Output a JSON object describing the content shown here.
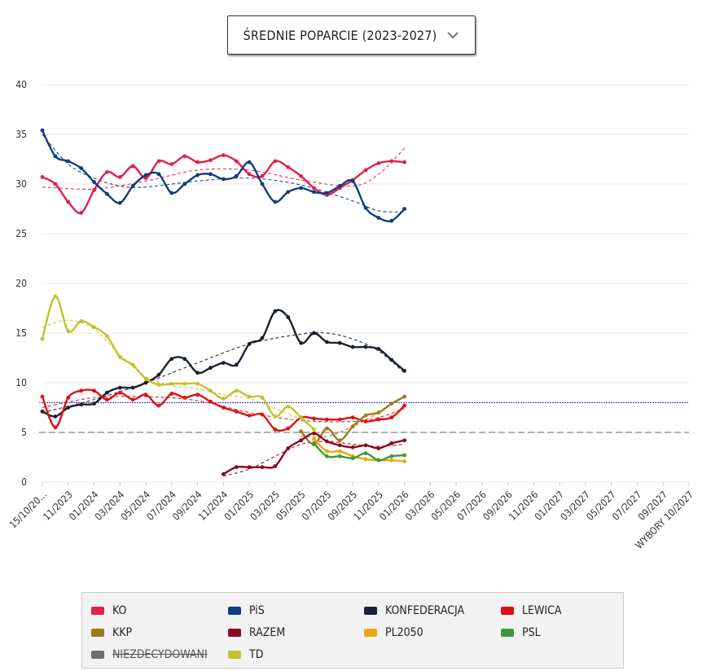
{
  "dropdown": {
    "label": "ŚREDNIE POPARCIE (2023-2027)"
  },
  "chart_data": {
    "type": "line",
    "ylim": [
      0,
      40
    ],
    "yticks": [
      0,
      5,
      10,
      15,
      20,
      25,
      30,
      35,
      40
    ],
    "x_ticks": [
      "15/10/20...",
      "11/2023",
      "01/2024",
      "03/2024",
      "05/2024",
      "07/2024",
      "09/2024",
      "11/2024",
      "01/2025",
      "03/2025",
      "05/2025",
      "07/2025",
      "09/2025",
      "11/2025",
      "01/2026",
      "03/2026",
      "05/2026",
      "07/2026",
      "09/2026",
      "11/2026",
      "01/2027",
      "03/2027",
      "05/2027",
      "07/2027",
      "09/2027",
      "WYBORY 10/2027"
    ],
    "reference_lines": [
      {
        "value": 8,
        "color": "#2222ee",
        "style": "dotted"
      },
      {
        "value": 5,
        "color": "#999999",
        "style": "dashed"
      }
    ],
    "series": [
      {
        "name": "KO",
        "color": "#e0204e",
        "points": [
          [
            0,
            30.7
          ],
          [
            0.5,
            30
          ],
          [
            1,
            28.2
          ],
          [
            1.5,
            27.1
          ],
          [
            2,
            29.4
          ],
          [
            2.5,
            31.2
          ],
          [
            3,
            30.7
          ],
          [
            3.5,
            31.8
          ],
          [
            4,
            30.6
          ],
          [
            4.5,
            32.3
          ],
          [
            5,
            32
          ],
          [
            5.5,
            32.8
          ],
          [
            6,
            32.2
          ],
          [
            6.5,
            32.4
          ],
          [
            7,
            32.9
          ],
          [
            7.5,
            32.3
          ],
          [
            8,
            31
          ],
          [
            8.5,
            30.8
          ],
          [
            9,
            32.3
          ],
          [
            9.5,
            31.7
          ],
          [
            10,
            30.8
          ],
          [
            10.5,
            29.6
          ],
          [
            11,
            28.9
          ],
          [
            11.5,
            29.6
          ],
          [
            12,
            30.4
          ],
          [
            12.5,
            31.4
          ],
          [
            13,
            32.1
          ],
          [
            13.5,
            32.3
          ],
          [
            14,
            32.2
          ]
        ],
        "trend": [
          [
            0,
            29.7
          ],
          [
            2,
            29.5
          ],
          [
            4,
            30.3
          ],
          [
            6,
            31.4
          ],
          [
            8,
            31.4
          ],
          [
            10,
            30.4
          ],
          [
            12,
            29.8
          ],
          [
            13,
            31
          ],
          [
            14,
            33.6
          ]
        ]
      },
      {
        "name": "PiS",
        "color": "#0d3d80",
        "points": [
          [
            0,
            35.4
          ],
          [
            0.5,
            32.8
          ],
          [
            1,
            32.3
          ],
          [
            1.5,
            31.6
          ],
          [
            2,
            30.2
          ],
          [
            2.5,
            29
          ],
          [
            3,
            28.1
          ],
          [
            3.5,
            29.8
          ],
          [
            4,
            30.9
          ],
          [
            4.5,
            31
          ],
          [
            5,
            29.1
          ],
          [
            5.5,
            30
          ],
          [
            6,
            30.9
          ],
          [
            6.5,
            31
          ],
          [
            7,
            30.5
          ],
          [
            7.5,
            30.8
          ],
          [
            8,
            32.2
          ],
          [
            8.5,
            30
          ],
          [
            9,
            28.2
          ],
          [
            9.5,
            29.2
          ],
          [
            10,
            29.6
          ],
          [
            10.5,
            29.2
          ],
          [
            11,
            29.1
          ],
          [
            11.5,
            29.8
          ],
          [
            12,
            30.3
          ],
          [
            12.5,
            27.6
          ],
          [
            13,
            26.6
          ],
          [
            13.5,
            26.3
          ],
          [
            14,
            27.5
          ]
        ],
        "trend": [
          [
            0,
            35
          ],
          [
            1,
            32
          ],
          [
            2,
            30.6
          ],
          [
            3,
            29.8
          ],
          [
            4,
            29.7
          ],
          [
            6,
            30.3
          ],
          [
            8,
            30.6
          ],
          [
            10,
            29.9
          ],
          [
            12,
            28.3
          ],
          [
            13,
            27.3
          ],
          [
            14,
            27.2
          ]
        ]
      },
      {
        "name": "KONFEDERACJA",
        "color": "#1a2136",
        "points": [
          [
            0,
            7.1
          ],
          [
            0.5,
            6.6
          ],
          [
            1,
            7.5
          ],
          [
            1.5,
            7.8
          ],
          [
            2,
            7.9
          ],
          [
            2.5,
            9
          ],
          [
            3,
            9.5
          ],
          [
            3.5,
            9.5
          ],
          [
            4,
            10
          ],
          [
            4.5,
            10.8
          ],
          [
            5,
            12.4
          ],
          [
            5.5,
            12.4
          ],
          [
            6,
            11
          ],
          [
            6.5,
            11.5
          ],
          [
            7,
            12
          ],
          [
            7.5,
            11.8
          ],
          [
            8,
            13.9
          ],
          [
            8.5,
            14.5
          ],
          [
            9,
            17.2
          ],
          [
            9.5,
            16.6
          ],
          [
            10,
            14
          ],
          [
            10.5,
            15
          ],
          [
            11,
            14.1
          ],
          [
            11.5,
            14
          ],
          [
            12,
            13.6
          ],
          [
            12.5,
            13.6
          ],
          [
            13,
            13.4
          ],
          [
            13.5,
            12.3
          ],
          [
            14,
            11.2
          ]
        ],
        "trend": [
          [
            0,
            7
          ],
          [
            2,
            8.3
          ],
          [
            4,
            10
          ],
          [
            6,
            12
          ],
          [
            8,
            13.9
          ],
          [
            10,
            14.9
          ],
          [
            11,
            15
          ],
          [
            12,
            14.4
          ],
          [
            13,
            13.2
          ],
          [
            14,
            11
          ]
        ]
      },
      {
        "name": "LEWICA",
        "color": "#dd1111",
        "points": [
          [
            0,
            8.6
          ],
          [
            0.5,
            5.5
          ],
          [
            1,
            8.5
          ],
          [
            1.5,
            9.2
          ],
          [
            2,
            9.2
          ],
          [
            2.5,
            8.3
          ],
          [
            3,
            9
          ],
          [
            3.5,
            8.3
          ],
          [
            4,
            8.8
          ],
          [
            4.5,
            7.7
          ],
          [
            5,
            8.9
          ],
          [
            5.5,
            8.5
          ],
          [
            6,
            8.8
          ],
          [
            6.5,
            8.1
          ],
          [
            7,
            7.5
          ],
          [
            7.5,
            7.1
          ],
          [
            8,
            6.7
          ],
          [
            8.5,
            6.8
          ],
          [
            9,
            5.3
          ],
          [
            9.5,
            5.4
          ],
          [
            10,
            6.5
          ],
          [
            10.5,
            6.4
          ],
          [
            11,
            6.3
          ],
          [
            11.5,
            6.3
          ],
          [
            12,
            6.5
          ],
          [
            12.5,
            6.1
          ],
          [
            13,
            6.3
          ],
          [
            13.5,
            6.5
          ],
          [
            14,
            7.7
          ]
        ],
        "trend": [
          [
            0,
            7.5
          ],
          [
            2,
            8.5
          ],
          [
            4,
            8.6
          ],
          [
            6,
            8.2
          ],
          [
            8,
            7
          ],
          [
            10,
            6.2
          ],
          [
            12,
            6.1
          ],
          [
            13,
            6.5
          ],
          [
            14,
            7.4
          ]
        ]
      },
      {
        "name": "KKP",
        "color": "#a07a1a",
        "points": [
          [
            10,
            5.1
          ],
          [
            10.5,
            3.8
          ],
          [
            11,
            5.4
          ],
          [
            11.5,
            4.2
          ],
          [
            12,
            5.6
          ],
          [
            12.5,
            6.7
          ],
          [
            13,
            7
          ],
          [
            13.5,
            7.9
          ],
          [
            14,
            8.6
          ]
        ],
        "trend": [
          [
            10,
            4.6
          ],
          [
            11,
            4.6
          ],
          [
            12,
            5.6
          ],
          [
            13,
            7
          ],
          [
            14,
            8.6
          ]
        ]
      },
      {
        "name": "RAZEM",
        "color": "#8b0a20",
        "points": [
          [
            7,
            0.8
          ],
          [
            7.5,
            1.5
          ],
          [
            8,
            1.5
          ],
          [
            8.5,
            1.5
          ],
          [
            9,
            1.6
          ],
          [
            9.5,
            3.4
          ],
          [
            10,
            4.2
          ],
          [
            10.5,
            4.9
          ],
          [
            11,
            4.1
          ],
          [
            11.5,
            3.7
          ],
          [
            12,
            3.5
          ],
          [
            12.5,
            3.7
          ],
          [
            13,
            3.4
          ],
          [
            13.5,
            3.9
          ],
          [
            14,
            4.2
          ]
        ],
        "trend": [
          [
            7,
            0.6
          ],
          [
            8,
            1.3
          ],
          [
            9,
            2.6
          ],
          [
            10,
            3.8
          ],
          [
            11,
            4.1
          ],
          [
            12,
            3.8
          ],
          [
            13,
            3.6
          ],
          [
            14,
            3.8
          ]
        ]
      },
      {
        "name": "PL2050",
        "color": "#e6a817",
        "points": [
          [
            10.5,
            4.3
          ],
          [
            11,
            3.1
          ],
          [
            11.5,
            3.1
          ],
          [
            12,
            2.6
          ],
          [
            12.5,
            2.3
          ],
          [
            13,
            2.2
          ],
          [
            13.5,
            2.2
          ],
          [
            14,
            2.1
          ]
        ]
      },
      {
        "name": "PSL",
        "color": "#3a9a3a",
        "points": [
          [
            10.5,
            3.9
          ],
          [
            11,
            2.6
          ],
          [
            11.5,
            2.6
          ],
          [
            12,
            2.4
          ],
          [
            12.5,
            2.9
          ],
          [
            13,
            2.2
          ],
          [
            13.5,
            2.6
          ],
          [
            14,
            2.7
          ]
        ]
      },
      {
        "name": "NIEZDECYDOWANI",
        "color": "#6e6e6e",
        "hidden": true,
        "points": []
      },
      {
        "name": "TD",
        "color": "#c2c22e",
        "points": [
          [
            0,
            14.4
          ],
          [
            0.5,
            18.7
          ],
          [
            1,
            15.2
          ],
          [
            1.5,
            16.2
          ],
          [
            2,
            15.6
          ],
          [
            2.5,
            14.7
          ],
          [
            3,
            12.6
          ],
          [
            3.5,
            11.8
          ],
          [
            4,
            10.4
          ],
          [
            4.5,
            9.8
          ],
          [
            5,
            9.9
          ],
          [
            5.5,
            9.9
          ],
          [
            6,
            9.9
          ],
          [
            6.5,
            9.2
          ],
          [
            7,
            8.4
          ],
          [
            7.5,
            9.2
          ],
          [
            8,
            8.6
          ],
          [
            8.5,
            8.5
          ],
          [
            9,
            6.6
          ],
          [
            9.5,
            7.6
          ],
          [
            10,
            6.5
          ],
          [
            10.5,
            5.3
          ]
        ],
        "trend": [
          [
            0,
            15.6
          ],
          [
            1,
            16.3
          ],
          [
            2,
            15.4
          ],
          [
            3,
            12.8
          ],
          [
            4,
            10.6
          ],
          [
            5,
            9.7
          ],
          [
            6,
            9.4
          ],
          [
            7,
            8.8
          ],
          [
            8,
            8.4
          ],
          [
            9,
            7.4
          ],
          [
            10,
            6.3
          ],
          [
            10.5,
            5.3
          ]
        ]
      }
    ]
  },
  "legend": {
    "items": [
      {
        "label": "KO",
        "color": "#e0204e"
      },
      {
        "label": "PiS",
        "color": "#0d3d80"
      },
      {
        "label": "KONFEDERACJA",
        "color": "#1a2136"
      },
      {
        "label": "LEWICA",
        "color": "#dd1111"
      },
      {
        "label": "KKP",
        "color": "#a07a1a"
      },
      {
        "label": "RAZEM",
        "color": "#8b0a20"
      },
      {
        "label": "PL2050",
        "color": "#e6a817"
      },
      {
        "label": "PSL",
        "color": "#3a9a3a"
      },
      {
        "label": "NIEZDECYDOWANI",
        "color": "#6e6e6e"
      },
      {
        "label": "TD",
        "color": "#c2c22e"
      }
    ]
  }
}
